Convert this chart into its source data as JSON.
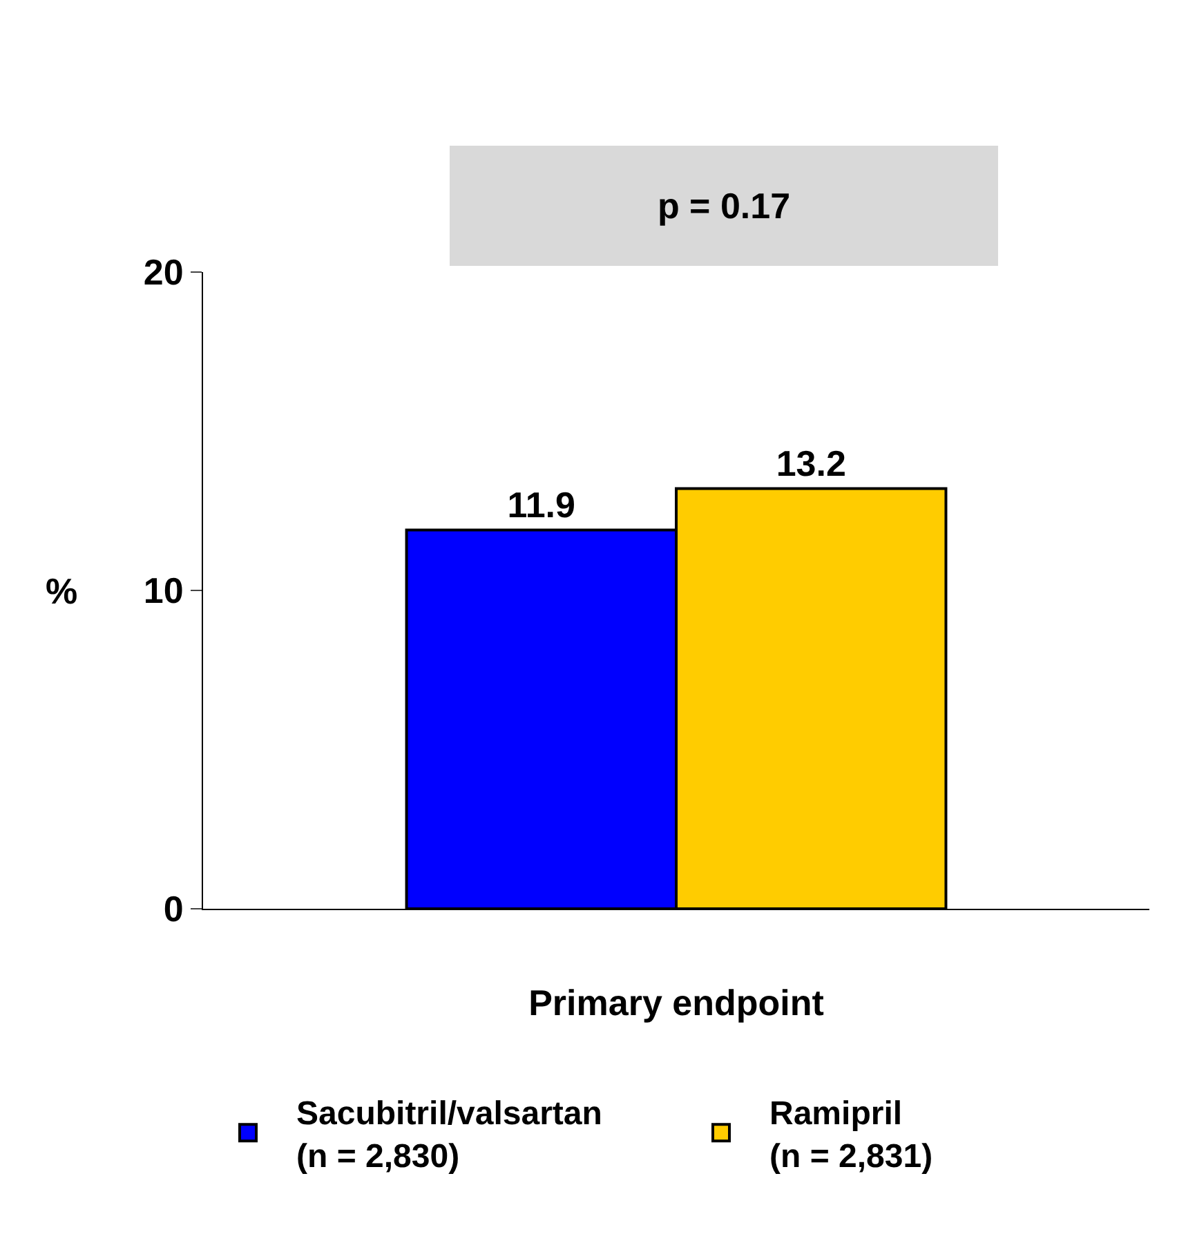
{
  "chart_data": {
    "type": "bar",
    "categories": [
      "Primary endpoint"
    ],
    "series": [
      {
        "name": "Sacubitril/valsartan\n(n = 2,830)",
        "color": "#0000ff",
        "values": [
          11.9
        ]
      },
      {
        "name": "Ramipril\n(n = 2,831)",
        "color": "#ffcc00",
        "values": [
          13.2
        ]
      }
    ],
    "ylabel": "%",
    "ylim": [
      0,
      20
    ],
    "yticks": [
      0,
      10,
      20
    ],
    "grid": false,
    "legend": "bottom",
    "data_labels": true,
    "annotations": [
      "p = 0.17"
    ]
  }
}
